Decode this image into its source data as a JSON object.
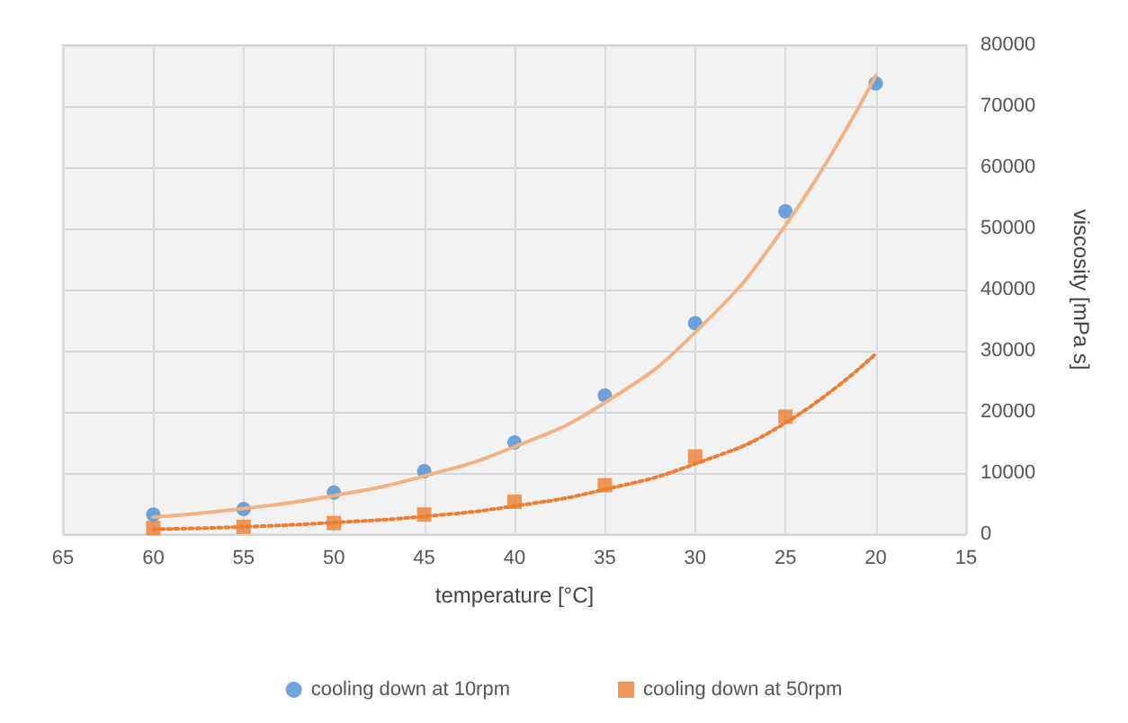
{
  "chart_data": {
    "type": "scatter",
    "xlabel": "temperature [°C]",
    "ylabel": "viscosity [mPa s]",
    "xlim": [
      65,
      15
    ],
    "xticks": [
      65,
      60,
      55,
      50,
      45,
      40,
      35,
      30,
      25,
      20,
      15
    ],
    "ylim": [
      0,
      80000
    ],
    "yticks": [
      0,
      10000,
      20000,
      30000,
      40000,
      50000,
      60000,
      70000,
      80000
    ],
    "grid": true,
    "legend": "bottom",
    "x": [
      60,
      55,
      50,
      45,
      40,
      35,
      30,
      25,
      20
    ],
    "series": [
      {
        "name": "cooling down at 10rpm",
        "color": "#4a8fd4",
        "marker": "circle",
        "values": [
          3200,
          4100,
          6800,
          10300,
          15000,
          22700,
          34500,
          52800,
          73700
        ]
      },
      {
        "name": "cooling down at 50rpm",
        "color": "#ed7d31",
        "marker": "square",
        "values": [
          1000,
          1200,
          1800,
          3200,
          5300,
          8000,
          12700,
          19200,
          null
        ]
      },
      {
        "type": "line",
        "color": "#f4b183",
        "marker": "none",
        "line_style": "solid",
        "values": [
          2800,
          4200,
          6300,
          9500,
          14300,
          21500,
          33000,
          50500,
          75000
        ]
      },
      {
        "type": "line",
        "color": "#ed7d31",
        "marker": "none",
        "line_style": "dotted",
        "values": [
          800,
          1200,
          1900,
          2900,
          4600,
          7300,
          11500,
          18200,
          29500
        ]
      }
    ]
  }
}
